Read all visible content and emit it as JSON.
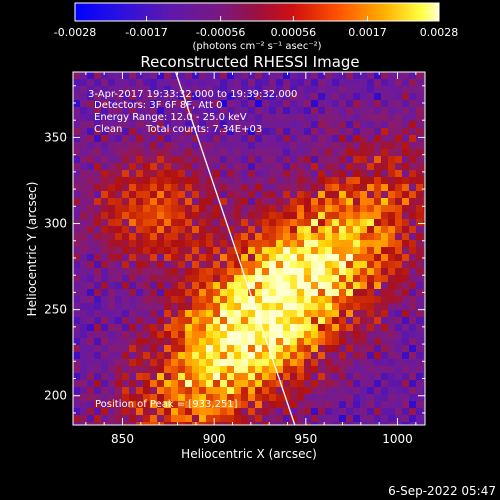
{
  "colorbar": {
    "min": -0.0028,
    "max": 0.0028,
    "tick_labels": [
      "-0.0028",
      "-0.0017",
      "-0.00056",
      "0.00056",
      "0.0017",
      "0.0028"
    ],
    "tick_values": [
      -0.0028,
      -0.0017,
      -0.00056,
      0.00056,
      0.0017,
      0.0028
    ],
    "unit_label": "(photons cm⁻² s⁻¹ asec⁻²)"
  },
  "chart_data": {
    "type": "heatmap",
    "title": "Reconstructed RHESSI Image",
    "xlabel": "Heliocentric X (arcsec)",
    "ylabel": "Heliocentric Y (arcsec)",
    "xlim": [
      823,
      1015
    ],
    "ylim": [
      183,
      388
    ],
    "x_ticks": [
      850,
      900,
      950,
      1000
    ],
    "y_ticks": [
      200,
      250,
      300,
      350
    ],
    "x_tick_labels": [
      "850",
      "900",
      "950",
      "1000"
    ],
    "y_tick_labels": [
      "200",
      "250",
      "300",
      "350"
    ],
    "peak_position": [
      933,
      251
    ],
    "limb_line": [
      [
        879,
        388
      ],
      [
        944,
        183
      ]
    ],
    "annotations": {
      "time_range": "3-Apr-2017 19:33:32.000 to 19:39:32.000",
      "detectors": "Detectors: 3F 6F 8F, Att 0",
      "energy": "Energy Range: 12.0 - 25.0 keV",
      "clean_label": "Clean",
      "counts": "Total counts: 7.34E+03",
      "peak": "Position of Peak = [933,251]"
    }
  },
  "footer": {
    "timestamp": "6-Sep-2022 05:47"
  },
  "colors": {
    "background": "#000000",
    "text": "#ffffff",
    "colormap": [
      "#0000ff",
      "#4010c0",
      "#6a1aa0",
      "#8a1a6a",
      "#b01010",
      "#e04000",
      "#ff8000",
      "#ffd000",
      "#ffff60",
      "#ffffd0"
    ]
  }
}
